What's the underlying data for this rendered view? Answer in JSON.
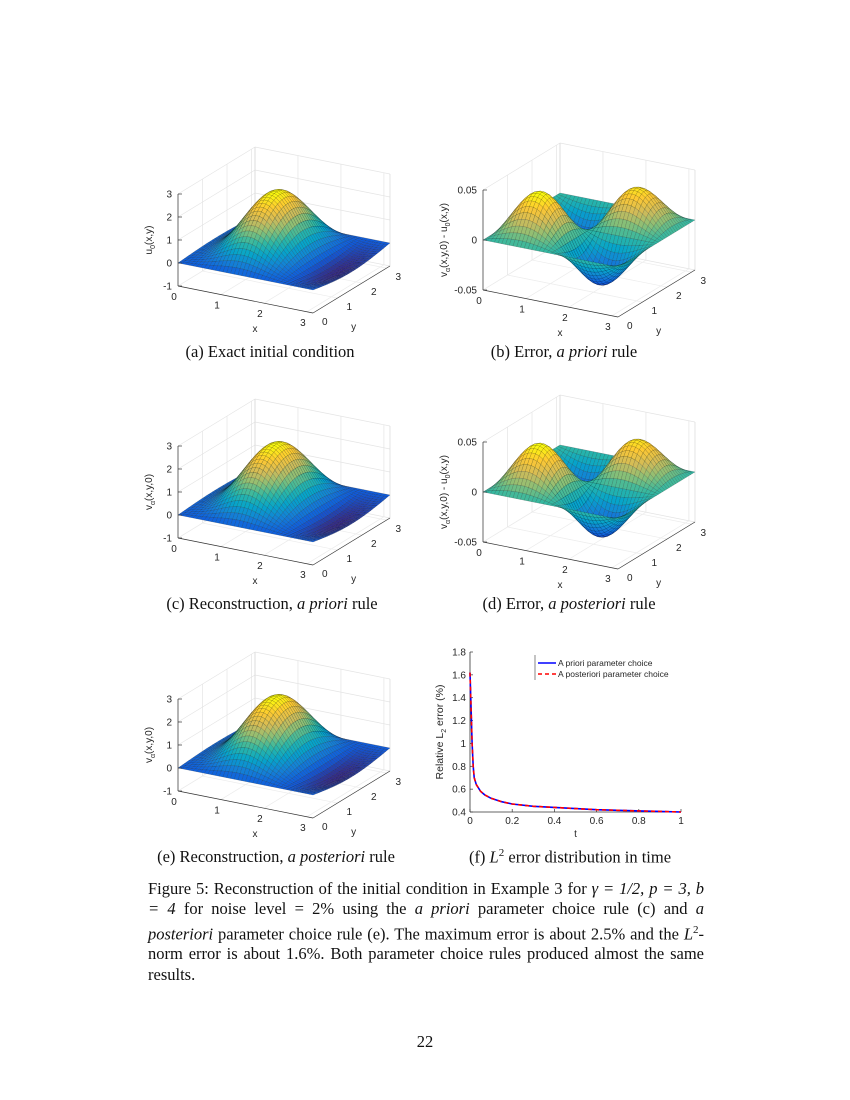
{
  "figure": {
    "subcaptions": [
      {
        "label": "(a) Exact initial condition",
        "pre": "(a) Exact initial condition",
        "em": "",
        "post": ""
      },
      {
        "pre": "(b) Error, ",
        "em": "a priori",
        "post": " rule"
      },
      {
        "pre": "(c) Reconstruction, ",
        "em": "a priori",
        "post": " rule"
      },
      {
        "pre": "(d) Error, ",
        "em": "a posteriori",
        "post": " rule"
      },
      {
        "pre": "(e) Reconstruction, ",
        "em": "a posteriori",
        "post": " rule"
      },
      {
        "pre": "(f) ",
        "em": "L",
        "sup": "2",
        "post": " error distribution in time"
      }
    ],
    "caption": {
      "s1": "Figure 5: Reconstruction of the initial condition in Example 3 for ",
      "m1": "γ = 1/2, p = 3, b = 4",
      "s2": " for noise level = 2% using the ",
      "e1": "a priori",
      "s3": " parameter choice rule (c) and ",
      "e2": "a posteriori",
      "s4": " parameter choice rule (e). The maximum error is about 2.5% and the ",
      "m2": "L",
      "sup": "2",
      "s5": "-norm error is about 1.6%. Both parameter choice rules produced almost the same results."
    }
  },
  "page_number": "22",
  "chart_data": [
    {
      "id": "a",
      "type": "surface",
      "surface": "initial",
      "zlabel": [
        "u",
        "0",
        "(x,y)"
      ],
      "xlabel": "x",
      "ylabel": "y",
      "zlim": [
        -1,
        3
      ],
      "xlim": [
        0,
        3.14
      ],
      "ylim": [
        0,
        3.14
      ],
      "zticks": [
        "-1",
        "0",
        "1",
        "2",
        "3"
      ],
      "xticks": [
        "0",
        "1",
        "2",
        "3"
      ],
      "yticks": [
        "0",
        "1",
        "2",
        "3"
      ],
      "colormap": "parula"
    },
    {
      "id": "b",
      "type": "surface",
      "surface": "error",
      "zlabel": [
        "v",
        "α",
        "(x,y,0) - u",
        "0",
        "(x,y)"
      ],
      "xlabel": "x",
      "ylabel": "y",
      "zlim": [
        -0.05,
        0.05
      ],
      "xlim": [
        0,
        3.14
      ],
      "ylim": [
        0,
        3.14
      ],
      "zticks": [
        "-0.05",
        "0",
        "0.05"
      ],
      "xticks": [
        "0",
        "1",
        "2",
        "3"
      ],
      "yticks": [
        "0",
        "1",
        "2",
        "3"
      ],
      "colormap": "parula"
    },
    {
      "id": "c",
      "type": "surface",
      "surface": "initial",
      "zlabel": [
        "v",
        "α",
        "(x,y,0)"
      ],
      "xlabel": "x",
      "ylabel": "y",
      "zlim": [
        -1,
        3
      ],
      "xlim": [
        0,
        3.14
      ],
      "ylim": [
        0,
        3.14
      ],
      "zticks": [
        "-1",
        "0",
        "1",
        "2",
        "3"
      ],
      "xticks": [
        "0",
        "1",
        "2",
        "3"
      ],
      "yticks": [
        "0",
        "1",
        "2",
        "3"
      ],
      "colormap": "parula"
    },
    {
      "id": "d",
      "type": "surface",
      "surface": "error",
      "zlabel": [
        "v",
        "α",
        "(x,y,0) - u",
        "0",
        "(x,y)"
      ],
      "xlabel": "x",
      "ylabel": "y",
      "zlim": [
        -0.05,
        0.05
      ],
      "xlim": [
        0,
        3.14
      ],
      "ylim": [
        0,
        3.14
      ],
      "zticks": [
        "-0.05",
        "0",
        "0.05"
      ],
      "xticks": [
        "0",
        "1",
        "2",
        "3"
      ],
      "yticks": [
        "0",
        "1",
        "2",
        "3"
      ],
      "colormap": "parula"
    },
    {
      "id": "e",
      "type": "surface",
      "surface": "initial",
      "zlabel": [
        "v",
        "α",
        "(x,y,0)"
      ],
      "xlabel": "x",
      "ylabel": "y",
      "zlim": [
        -1,
        3
      ],
      "xlim": [
        0,
        3.14
      ],
      "ylim": [
        0,
        3.14
      ],
      "zticks": [
        "-1",
        "0",
        "1",
        "2",
        "3"
      ],
      "xticks": [
        "0",
        "1",
        "2",
        "3"
      ],
      "yticks": [
        "0",
        "1",
        "2",
        "3"
      ],
      "colormap": "parula"
    },
    {
      "id": "f",
      "type": "line",
      "xlabel": "t",
      "ylabel": [
        "Relative L",
        "2",
        " error (%)"
      ],
      "xlim": [
        0,
        1
      ],
      "ylim": [
        0.4,
        1.8
      ],
      "xticks": [
        "0",
        "0.2",
        "0.4",
        "0.6",
        "0.8",
        "1"
      ],
      "yticks": [
        "0.4",
        "0.6",
        "0.8",
        "1",
        "1.2",
        "1.4",
        "1.6",
        "1.8"
      ],
      "legend": "top-right",
      "x": [
        0,
        0.005,
        0.01,
        0.015,
        0.02,
        0.03,
        0.05,
        0.07,
        0.1,
        0.15,
        0.2,
        0.3,
        0.4,
        0.5,
        0.6,
        0.7,
        0.8,
        0.9,
        1.0
      ],
      "series": [
        {
          "name": "A priori parameter choice",
          "color": "#0000ff",
          "style": "solid",
          "values": [
            1.62,
            1.3,
            1.0,
            0.8,
            0.7,
            0.64,
            0.58,
            0.55,
            0.52,
            0.49,
            0.47,
            0.45,
            0.44,
            0.43,
            0.42,
            0.415,
            0.41,
            0.405,
            0.4
          ]
        },
        {
          "name": "A posteriori parameter choice",
          "color": "#ff0000",
          "style": "dashed",
          "values": [
            1.62,
            1.3,
            1.0,
            0.8,
            0.7,
            0.64,
            0.58,
            0.55,
            0.52,
            0.49,
            0.47,
            0.45,
            0.44,
            0.43,
            0.42,
            0.415,
            0.41,
            0.405,
            0.4
          ]
        }
      ]
    }
  ]
}
